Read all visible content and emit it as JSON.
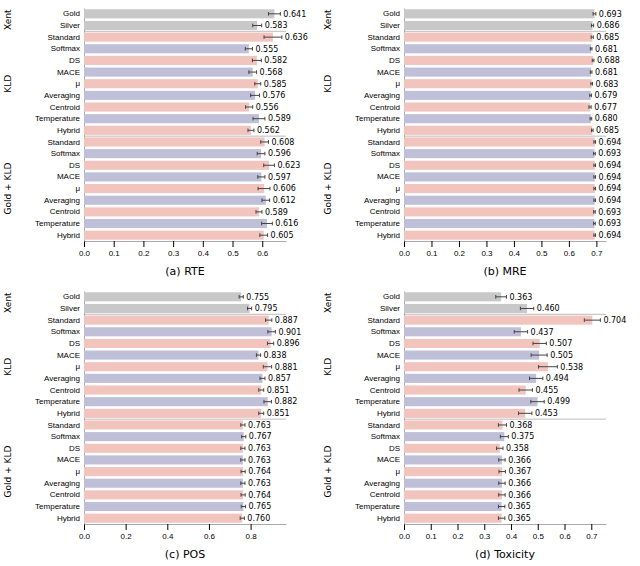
{
  "chart_data": [
    {
      "type": "bar",
      "orientation": "horizontal",
      "xlabel": "(a) RTE",
      "data_labels": true,
      "xlim": [
        0.0,
        0.68
      ],
      "xticks": [
        {
          "value": 0.0,
          "label": "0.0"
        },
        0.1,
        0.2,
        0.3,
        0.4,
        0.5,
        0.6
      ],
      "groups": [
        {
          "name": "Xent",
          "categories": [
            "Gold",
            "Silver"
          ],
          "values": [
            0.641,
            0.583
          ],
          "errors": [
            0.02,
            0.015
          ],
          "value_labels": [
            "0.641",
            "0.583"
          ],
          "colors": [
            "#c8c8c8",
            "#c8c8c8"
          ]
        },
        {
          "name": "KLD",
          "categories": [
            "Standard",
            "Softmax",
            "DS",
            "MACE",
            "μ",
            "Averaging",
            "Centroid",
            "Temperature",
            "Hybrid"
          ],
          "values": [
            0.636,
            0.555,
            0.582,
            0.568,
            0.585,
            0.576,
            0.556,
            0.589,
            0.562
          ],
          "errors": [
            0.03,
            0.012,
            0.015,
            0.013,
            0.01,
            0.015,
            0.012,
            0.02,
            0.01
          ],
          "value_labels": [
            "0.636",
            "0.555",
            "0.582",
            "0.568",
            "0.585",
            "0.576",
            "0.556",
            "0.589",
            "0.562"
          ],
          "colors": [
            "#f2c4be",
            "#c0bfd8",
            "#f2c4be",
            "#c0bfd8",
            "#f2c4be",
            "#c0bfd8",
            "#f2c4be",
            "#c0bfd8",
            "#f2c4be"
          ]
        },
        {
          "name": "Gold + KLD",
          "categories": [
            "Standard",
            "Softmax",
            "DS",
            "MACE",
            "μ",
            "Averaging",
            "Centroid",
            "Temperature",
            "Hybrid"
          ],
          "values": [
            0.608,
            0.596,
            0.623,
            0.597,
            0.606,
            0.612,
            0.589,
            0.616,
            0.605
          ],
          "errors": [
            0.013,
            0.013,
            0.018,
            0.012,
            0.02,
            0.013,
            0.01,
            0.018,
            0.013
          ],
          "value_labels": [
            "0.608",
            "0.596",
            "0.623",
            "0.597",
            "0.606",
            "0.612",
            "0.589",
            "0.616",
            "0.605"
          ],
          "colors": [
            "#f2c4be",
            "#c0bfd8",
            "#f2c4be",
            "#c0bfd8",
            "#f2c4be",
            "#c0bfd8",
            "#f2c4be",
            "#c0bfd8",
            "#f2c4be"
          ]
        }
      ]
    },
    {
      "type": "bar",
      "orientation": "horizontal",
      "xlabel": "(b) MRE",
      "data_labels": true,
      "xlim": [
        0.0,
        0.735
      ],
      "xticks": [
        {
          "value": 0.0,
          "label": "0.0"
        },
        0.1,
        0.2,
        0.3,
        0.4,
        0.5,
        0.6,
        0.7
      ],
      "groups": [
        {
          "name": "Xent",
          "categories": [
            "Gold",
            "Silver"
          ],
          "values": [
            0.693,
            0.686
          ],
          "errors": [
            0.005,
            0.004
          ],
          "value_labels": [
            "0.693",
            "0.686"
          ],
          "colors": [
            "#c8c8c8",
            "#c8c8c8"
          ]
        },
        {
          "name": "KLD",
          "categories": [
            "Standard",
            "Softmax",
            "DS",
            "MACE",
            "μ",
            "Averaging",
            "Centroid",
            "Temperature",
            "Hybrid"
          ],
          "values": [
            0.685,
            0.681,
            0.688,
            0.681,
            0.683,
            0.679,
            0.677,
            0.68,
            0.685
          ],
          "errors": [
            0.004,
            0.003,
            0.003,
            0.003,
            0.003,
            0.003,
            0.004,
            0.003,
            0.003
          ],
          "value_labels": [
            "0.685",
            "0.681",
            "0.688",
            "0.681",
            "0.683",
            "0.679",
            "0.677",
            "0.680",
            "0.685"
          ],
          "colors": [
            "#f2c4be",
            "#c0bfd8",
            "#f2c4be",
            "#c0bfd8",
            "#f2c4be",
            "#c0bfd8",
            "#f2c4be",
            "#c0bfd8",
            "#f2c4be"
          ]
        },
        {
          "name": "Gold + KLD",
          "categories": [
            "Standard",
            "Softmax",
            "DS",
            "MACE",
            "μ",
            "Averaging",
            "Centroid",
            "Temperature",
            "Hybrid"
          ],
          "values": [
            0.694,
            0.693,
            0.694,
            0.694,
            0.694,
            0.694,
            0.693,
            0.693,
            0.694
          ],
          "errors": [
            0.003,
            0.003,
            0.003,
            0.003,
            0.003,
            0.003,
            0.003,
            0.003,
            0.003
          ],
          "value_labels": [
            "0.694",
            "0.693",
            "0.694",
            "0.694",
            "0.694",
            "0.694",
            "0.693",
            "0.693",
            "0.694"
          ],
          "colors": [
            "#f2c4be",
            "#c0bfd8",
            "#f2c4be",
            "#c0bfd8",
            "#f2c4be",
            "#c0bfd8",
            "#f2c4be",
            "#c0bfd8",
            "#f2c4be"
          ]
        }
      ]
    },
    {
      "type": "bar",
      "orientation": "horizontal",
      "xlabel": "(c) POS",
      "data_labels": true,
      "xlim": [
        0.0,
        0.97
      ],
      "xticks": [
        {
          "value": 0.0,
          "label": "0.0"
        },
        0.2,
        0.4,
        0.6,
        0.8
      ],
      "groups": [
        {
          "name": "Xent",
          "categories": [
            "Gold",
            "Silver"
          ],
          "values": [
            0.755,
            0.795
          ],
          "errors": [
            0.01,
            0.01
          ],
          "value_labels": [
            "0.755",
            "0.795"
          ],
          "colors": [
            "#c8c8c8",
            "#c8c8c8"
          ]
        },
        {
          "name": "KLD",
          "categories": [
            "Standard",
            "Softmax",
            "DS",
            "MACE",
            "μ",
            "Averaging",
            "Centroid",
            "Temperature",
            "Hybrid"
          ],
          "values": [
            0.887,
            0.901,
            0.896,
            0.838,
            0.881,
            0.857,
            0.851,
            0.882,
            0.851
          ],
          "errors": [
            0.015,
            0.018,
            0.015,
            0.01,
            0.02,
            0.012,
            0.012,
            0.018,
            0.012
          ],
          "value_labels": [
            "0.887",
            "0.901",
            "0.896",
            "0.838",
            "0.881",
            "0.857",
            "0.851",
            "0.882",
            "0.851"
          ],
          "colors": [
            "#f2c4be",
            "#c0bfd8",
            "#f2c4be",
            "#c0bfd8",
            "#f2c4be",
            "#c0bfd8",
            "#f2c4be",
            "#c0bfd8",
            "#f2c4be"
          ]
        },
        {
          "name": "Gold + KLD",
          "categories": [
            "Standard",
            "Softmax",
            "DS",
            "MACE",
            "μ",
            "Averaging",
            "Centroid",
            "Temperature",
            "Hybrid"
          ],
          "values": [
            0.763,
            0.767,
            0.763,
            0.763,
            0.764,
            0.763,
            0.764,
            0.765,
            0.76
          ],
          "errors": [
            0.01,
            0.01,
            0.01,
            0.01,
            0.01,
            0.01,
            0.01,
            0.01,
            0.01
          ],
          "value_labels": [
            "0.763",
            "0.767",
            "0.763",
            "0.763",
            "0.764",
            "0.763",
            "0.764",
            "0.765",
            "0.760"
          ],
          "colors": [
            "#f2c4be",
            "#c0bfd8",
            "#f2c4be",
            "#c0bfd8",
            "#f2c4be",
            "#c0bfd8",
            "#f2c4be",
            "#c0bfd8",
            "#f2c4be"
          ]
        }
      ]
    },
    {
      "type": "bar",
      "orientation": "horizontal",
      "xlabel": "(d) Toxicity",
      "data_labels": true,
      "xlim": [
        0.0,
        0.755
      ],
      "xticks": [
        {
          "value": 0.0,
          "label": "0.0"
        },
        0.1,
        0.2,
        0.3,
        0.4,
        0.5,
        0.6,
        0.7
      ],
      "groups": [
        {
          "name": "Xent",
          "categories": [
            "Gold",
            "Silver"
          ],
          "values": [
            0.363,
            0.46
          ],
          "errors": [
            0.02,
            0.025
          ],
          "value_labels": [
            "0.363",
            "0.460"
          ],
          "colors": [
            "#c8c8c8",
            "#c8c8c8"
          ]
        },
        {
          "name": "KLD",
          "categories": [
            "Standard",
            "Softmax",
            "DS",
            "MACE",
            "μ",
            "Averaging",
            "Centroid",
            "Temperature",
            "Hybrid"
          ],
          "values": [
            0.704,
            0.437,
            0.507,
            0.505,
            0.538,
            0.494,
            0.455,
            0.499,
            0.453
          ],
          "errors": [
            0.03,
            0.025,
            0.025,
            0.03,
            0.035,
            0.025,
            0.025,
            0.025,
            0.025
          ],
          "value_labels": [
            "0.704",
            "0.437",
            "0.507",
            "0.505",
            "0.538",
            "0.494",
            "0.455",
            "0.499",
            "0.453"
          ],
          "colors": [
            "#f2c4be",
            "#c0bfd8",
            "#f2c4be",
            "#c0bfd8",
            "#f2c4be",
            "#c0bfd8",
            "#f2c4be",
            "#c0bfd8",
            "#f2c4be"
          ]
        },
        {
          "name": "Gold + KLD",
          "categories": [
            "Standard",
            "Softmax",
            "DS",
            "MACE",
            "μ",
            "Averaging",
            "Centroid",
            "Temperature",
            "Hybrid"
          ],
          "values": [
            0.368,
            0.375,
            0.358,
            0.366,
            0.367,
            0.366,
            0.366,
            0.365,
            0.365
          ],
          "errors": [
            0.015,
            0.015,
            0.012,
            0.012,
            0.012,
            0.012,
            0.012,
            0.012,
            0.012
          ],
          "value_labels": [
            "0.368",
            "0.375",
            "0.358",
            "0.366",
            "0.367",
            "0.366",
            "0.366",
            "0.365",
            "0.365"
          ],
          "colors": [
            "#f2c4be",
            "#c0bfd8",
            "#f2c4be",
            "#c0bfd8",
            "#f2c4be",
            "#c0bfd8",
            "#f2c4be",
            "#c0bfd8",
            "#f2c4be"
          ]
        }
      ]
    }
  ]
}
